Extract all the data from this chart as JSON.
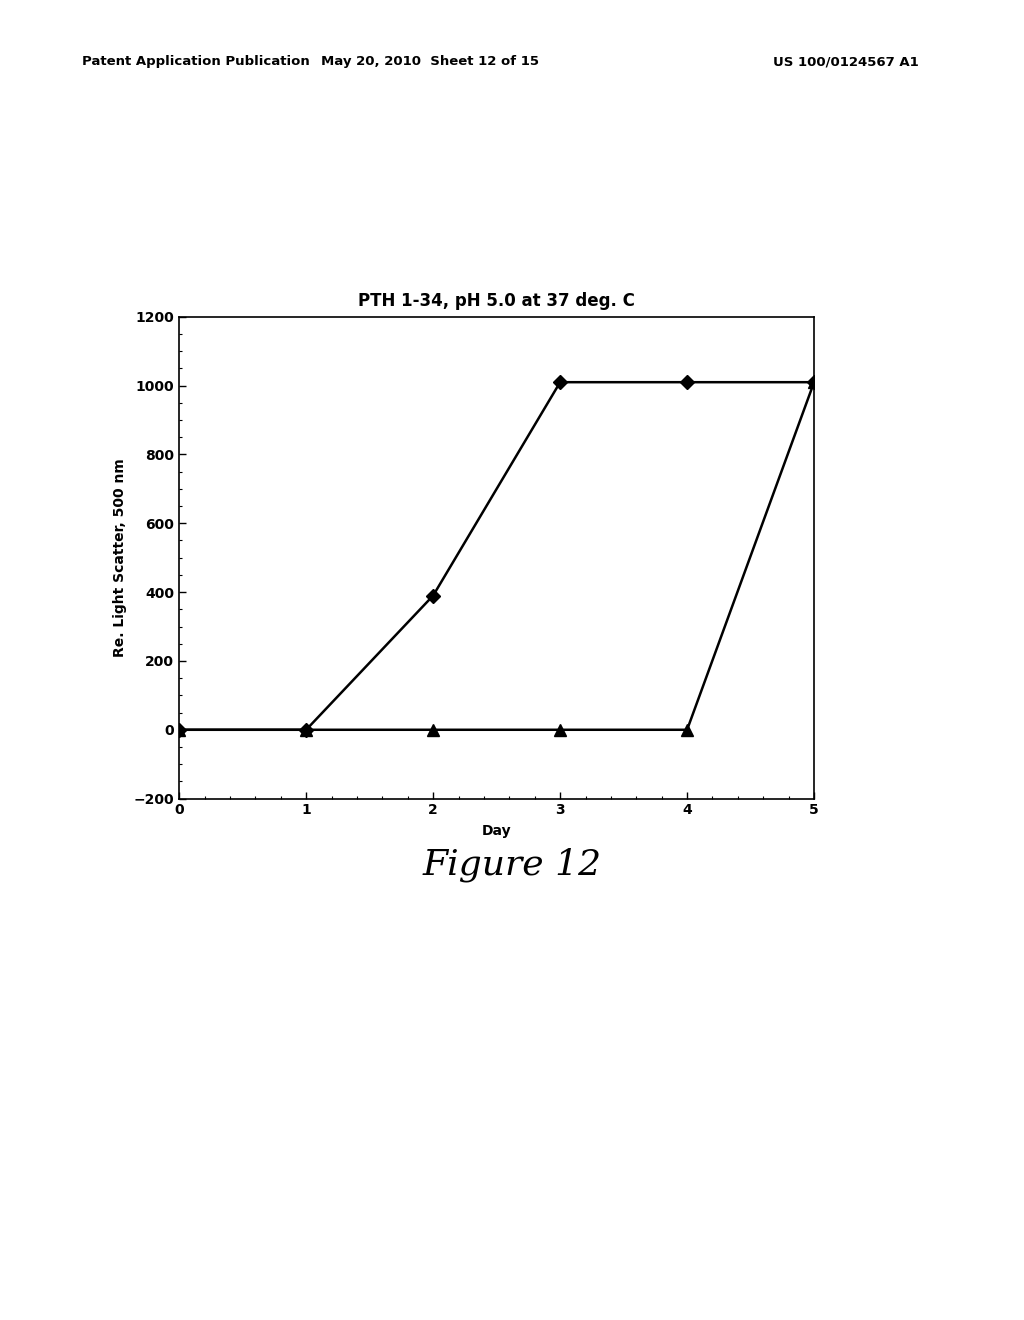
{
  "title": "PTH 1-34, pH 5.0 at 37 deg. C",
  "xlabel": "Day",
  "ylabel": "Re. Light Scatter, 500 nm",
  "xlim": [
    0,
    5
  ],
  "ylim": [
    -200,
    1200
  ],
  "yticks": [
    -200,
    0,
    200,
    400,
    600,
    800,
    1000,
    1200
  ],
  "xticks": [
    0,
    1,
    2,
    3,
    4,
    5
  ],
  "series1": {
    "x": [
      0,
      1,
      2,
      3,
      4,
      5
    ],
    "y": [
      0,
      0,
      390,
      1010,
      1010,
      1010
    ],
    "marker": "D",
    "color": "#000000",
    "markersize": 7,
    "linewidth": 1.8
  },
  "series2": {
    "x": [
      0,
      1,
      2,
      3,
      4,
      5
    ],
    "y": [
      0,
      0,
      0,
      0,
      0,
      1010
    ],
    "marker": "^",
    "color": "#000000",
    "markersize": 8,
    "linewidth": 1.8
  },
  "figure_label": "Figure 12",
  "header_left": "Patent Application Publication",
  "header_mid": "May 20, 2010  Sheet 12 of 15",
  "header_right": "US 100/0124567 A1",
  "background_color": "#ffffff",
  "title_fontsize": 12,
  "axis_label_fontsize": 10,
  "tick_fontsize": 10,
  "figure_label_fontsize": 26
}
